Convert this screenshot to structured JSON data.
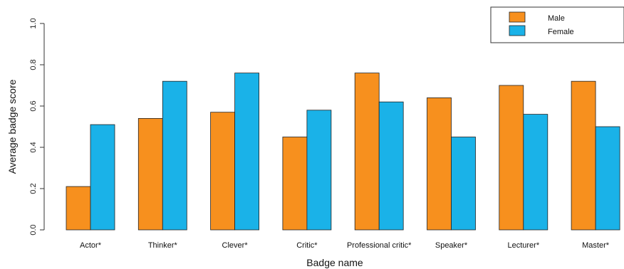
{
  "chart_data": {
    "type": "bar",
    "categories": [
      "Actor*",
      "Thinker*",
      "Clever*",
      "Critic*",
      "Professional critic*",
      "Speaker*",
      "Lecturer*",
      "Master*"
    ],
    "series": [
      {
        "name": "Male",
        "color": "#f7901e",
        "values": [
          0.21,
          0.54,
          0.57,
          0.45,
          0.76,
          0.64,
          0.7,
          0.72
        ]
      },
      {
        "name": "Female",
        "color": "#1ab2e8",
        "values": [
          0.51,
          0.72,
          0.76,
          0.58,
          0.62,
          0.45,
          0.56,
          0.5
        ]
      }
    ],
    "title": "",
    "xlabel": "Badge name",
    "ylabel": "Average badge score",
    "ylim": [
      0,
      1.0
    ],
    "yticks": [
      "0.0",
      "0.2",
      "0.4",
      "0.6",
      "0.8",
      "1.0"
    ],
    "grid": false,
    "legend_position": "top-right"
  }
}
